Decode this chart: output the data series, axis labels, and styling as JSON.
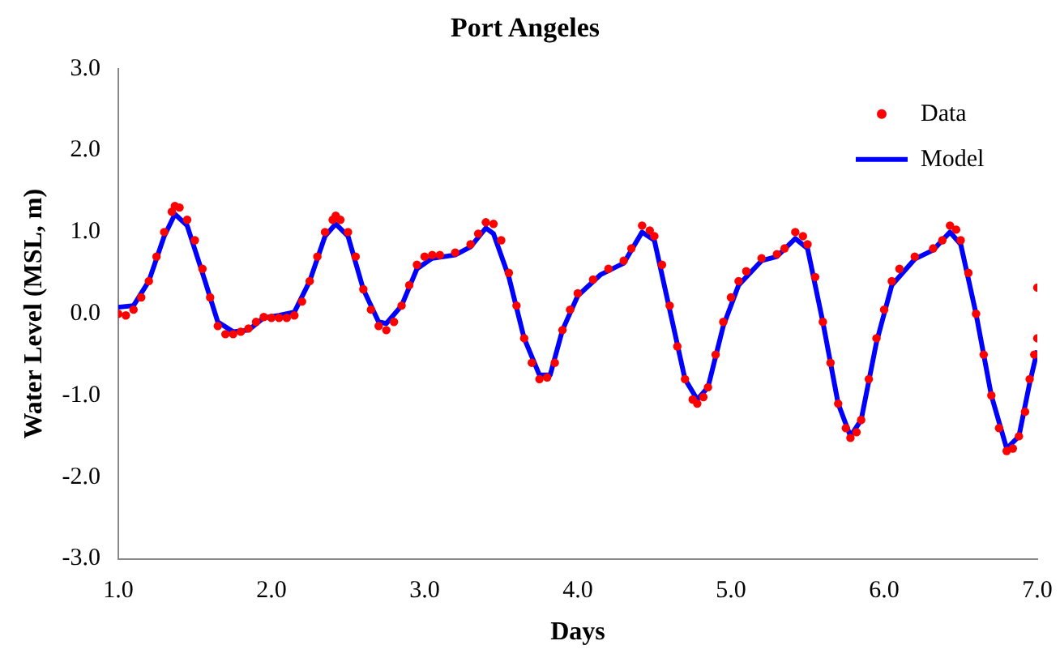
{
  "chart_data": {
    "type": "scatter",
    "title": "Port Angeles",
    "xlabel": "Days",
    "ylabel": "Water Level (MSL, m)",
    "xlim": [
      1,
      7
    ],
    "xticks": [
      {
        "value": 1,
        "label": "1.0"
      },
      {
        "value": 2,
        "label": "2.0"
      },
      {
        "value": 3,
        "label": "3.0"
      },
      {
        "value": 4,
        "label": "4.0"
      },
      {
        "value": 5,
        "label": "5.0"
      },
      {
        "value": 6,
        "label": "6.0"
      },
      {
        "value": 7,
        "label": "7.0"
      }
    ],
    "ylim": [
      -3,
      3
    ],
    "yticks": [
      {
        "value": -3,
        "label": "-3.0"
      },
      {
        "value": -2,
        "label": "-2.0"
      },
      {
        "value": -1,
        "label": "-1.0"
      },
      {
        "value": 0,
        "label": "0.0"
      },
      {
        "value": 1,
        "label": "1.0"
      },
      {
        "value": 2,
        "label": "2.0"
      },
      {
        "value": 3,
        "label": "3.0"
      }
    ],
    "grid": false,
    "legend": "top right",
    "series": [
      {
        "name": "Data",
        "type": "scatter",
        "color": "#ff0000",
        "marker": "circle",
        "x": [
          1.0,
          1.05,
          1.1,
          1.15,
          1.2,
          1.25,
          1.3,
          1.35,
          1.37,
          1.4,
          1.45,
          1.5,
          1.55,
          1.6,
          1.65,
          1.7,
          1.75,
          1.8,
          1.85,
          1.9,
          1.95,
          2.0,
          2.05,
          2.1,
          2.15,
          2.2,
          2.25,
          2.3,
          2.35,
          2.4,
          2.42,
          2.45,
          2.5,
          2.55,
          2.6,
          2.65,
          2.7,
          2.75,
          2.8,
          2.85,
          2.9,
          2.95,
          3.0,
          3.05,
          3.1,
          3.2,
          3.3,
          3.35,
          3.4,
          3.45,
          3.5,
          3.55,
          3.6,
          3.65,
          3.7,
          3.75,
          3.8,
          3.85,
          3.9,
          3.95,
          4.0,
          4.1,
          4.2,
          4.3,
          4.35,
          4.42,
          4.47,
          4.5,
          4.55,
          4.6,
          4.65,
          4.7,
          4.75,
          4.78,
          4.82,
          4.85,
          4.9,
          4.95,
          5.0,
          5.05,
          5.1,
          5.2,
          5.3,
          5.35,
          5.42,
          5.47,
          5.5,
          5.55,
          5.6,
          5.65,
          5.7,
          5.75,
          5.78,
          5.82,
          5.85,
          5.9,
          5.95,
          6.0,
          6.05,
          6.1,
          6.2,
          6.32,
          6.38,
          6.43,
          6.47,
          6.5,
          6.55,
          6.6,
          6.65,
          6.7,
          6.75,
          6.8,
          6.84,
          6.88,
          6.92,
          6.95,
          6.98,
          7.0,
          7.0
        ],
        "values": [
          0.0,
          -0.02,
          0.05,
          0.2,
          0.4,
          0.7,
          1.0,
          1.25,
          1.32,
          1.3,
          1.15,
          0.9,
          0.55,
          0.2,
          -0.15,
          -0.25,
          -0.25,
          -0.22,
          -0.18,
          -0.1,
          -0.04,
          -0.05,
          -0.05,
          -0.05,
          -0.02,
          0.15,
          0.4,
          0.7,
          1.0,
          1.15,
          1.2,
          1.15,
          1.0,
          0.7,
          0.3,
          0.05,
          -0.15,
          -0.2,
          -0.1,
          0.1,
          0.35,
          0.6,
          0.7,
          0.72,
          0.72,
          0.75,
          0.85,
          0.98,
          1.12,
          1.1,
          0.9,
          0.5,
          0.1,
          -0.3,
          -0.6,
          -0.8,
          -0.78,
          -0.6,
          -0.2,
          0.05,
          0.25,
          0.42,
          0.55,
          0.65,
          0.8,
          1.08,
          1.02,
          0.95,
          0.6,
          0.1,
          -0.4,
          -0.8,
          -1.05,
          -1.1,
          -1.02,
          -0.9,
          -0.5,
          -0.1,
          0.2,
          0.4,
          0.52,
          0.68,
          0.73,
          0.8,
          1.0,
          0.95,
          0.85,
          0.45,
          -0.1,
          -0.6,
          -1.1,
          -1.4,
          -1.52,
          -1.45,
          -1.3,
          -0.8,
          -0.3,
          0.05,
          0.4,
          0.55,
          0.7,
          0.8,
          0.9,
          1.08,
          1.03,
          0.9,
          0.5,
          0.0,
          -0.5,
          -1.0,
          -1.4,
          -1.68,
          -1.65,
          -1.5,
          -1.2,
          -0.8,
          -0.5,
          -0.3,
          0.32
        ]
      },
      {
        "name": "Model",
        "type": "line",
        "color": "#0000ff",
        "marker": "none",
        "line_style": "solid",
        "x": [
          1.0,
          1.1,
          1.2,
          1.3,
          1.37,
          1.45,
          1.55,
          1.65,
          1.75,
          1.85,
          1.95,
          2.05,
          2.15,
          2.25,
          2.35,
          2.42,
          2.5,
          2.6,
          2.7,
          2.75,
          2.85,
          2.95,
          3.05,
          3.2,
          3.3,
          3.4,
          3.45,
          3.55,
          3.65,
          3.75,
          3.82,
          3.9,
          4.0,
          4.15,
          4.3,
          4.42,
          4.5,
          4.6,
          4.7,
          4.78,
          4.85,
          4.95,
          5.05,
          5.2,
          5.3,
          5.42,
          5.5,
          5.6,
          5.7,
          5.78,
          5.85,
          5.95,
          6.05,
          6.2,
          6.32,
          6.43,
          6.5,
          6.6,
          6.7,
          6.8,
          6.88,
          6.95,
          7.0
        ],
        "values": [
          0.08,
          0.1,
          0.4,
          0.95,
          1.22,
          1.08,
          0.5,
          -0.1,
          -0.22,
          -0.2,
          -0.05,
          -0.02,
          0.02,
          0.4,
          0.95,
          1.1,
          0.95,
          0.3,
          -0.1,
          -0.12,
          0.1,
          0.55,
          0.68,
          0.72,
          0.82,
          1.05,
          0.98,
          0.45,
          -0.3,
          -0.75,
          -0.75,
          -0.2,
          0.22,
          0.48,
          0.62,
          1.0,
          0.9,
          0.05,
          -0.8,
          -1.05,
          -0.9,
          -0.15,
          0.35,
          0.65,
          0.7,
          0.92,
          0.8,
          -0.1,
          -1.1,
          -1.5,
          -1.3,
          -0.35,
          0.35,
          0.67,
          0.78,
          1.0,
          0.85,
          0.0,
          -1.0,
          -1.65,
          -1.5,
          -0.85,
          -0.45
        ]
      }
    ]
  }
}
